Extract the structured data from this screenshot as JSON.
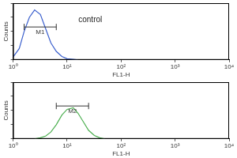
{
  "chart_data": [
    {
      "type": "line",
      "log": "x",
      "grid": false,
      "tick_labels": "x",
      "x_label": "FL1-H",
      "y_label": "Counts",
      "color": "#3a5fcd",
      "x": [
        1,
        1.3,
        1.6,
        2,
        2.5,
        3.2,
        4,
        5,
        6.3,
        8,
        10,
        13,
        16
      ],
      "values": [
        5,
        20,
        50,
        75,
        88,
        80,
        55,
        30,
        15,
        6,
        2,
        1,
        0
      ],
      "xlim": [
        1,
        10000
      ],
      "xticks": [
        {
          "value": 1,
          "label": "10⁰"
        },
        {
          "value": 10,
          "label": "10¹"
        },
        {
          "value": 100,
          "label": "10²"
        },
        {
          "value": 1000,
          "label": "10³"
        },
        {
          "value": 10000,
          "label": "10⁴"
        }
      ],
      "ylim": [
        0,
        100
      ],
      "yticks": [
        0,
        25,
        50,
        75,
        100
      ],
      "gates": [
        {
          "label": "M1",
          "range": [
            1.6,
            6.3
          ]
        }
      ],
      "annotations": [
        {
          "text": "control"
        }
      ]
    },
    {
      "type": "line",
      "log": "x",
      "grid": false,
      "tick_labels": "x",
      "x_label": "FL1-H",
      "y_label": "Counts",
      "color": "#4caf50",
      "x": [
        2.5,
        3.2,
        4,
        5,
        6.3,
        8,
        10,
        13,
        16,
        20,
        25,
        32,
        40,
        50
      ],
      "values": [
        0,
        2,
        5,
        12,
        25,
        42,
        52,
        55,
        45,
        30,
        15,
        6,
        2,
        0
      ],
      "xlim": [
        1,
        10000
      ],
      "xticks": [
        {
          "value": 1,
          "label": "10⁰"
        },
        {
          "value": 10,
          "label": "10¹"
        },
        {
          "value": 100,
          "label": "10²"
        },
        {
          "value": 1000,
          "label": "10³"
        },
        {
          "value": 10000,
          "label": "10⁴"
        }
      ],
      "ylim": [
        0,
        100
      ],
      "yticks": [
        0,
        25,
        50,
        75,
        100
      ],
      "gates": [
        {
          "label": "M2",
          "range": [
            6.3,
            25
          ]
        }
      ]
    }
  ]
}
